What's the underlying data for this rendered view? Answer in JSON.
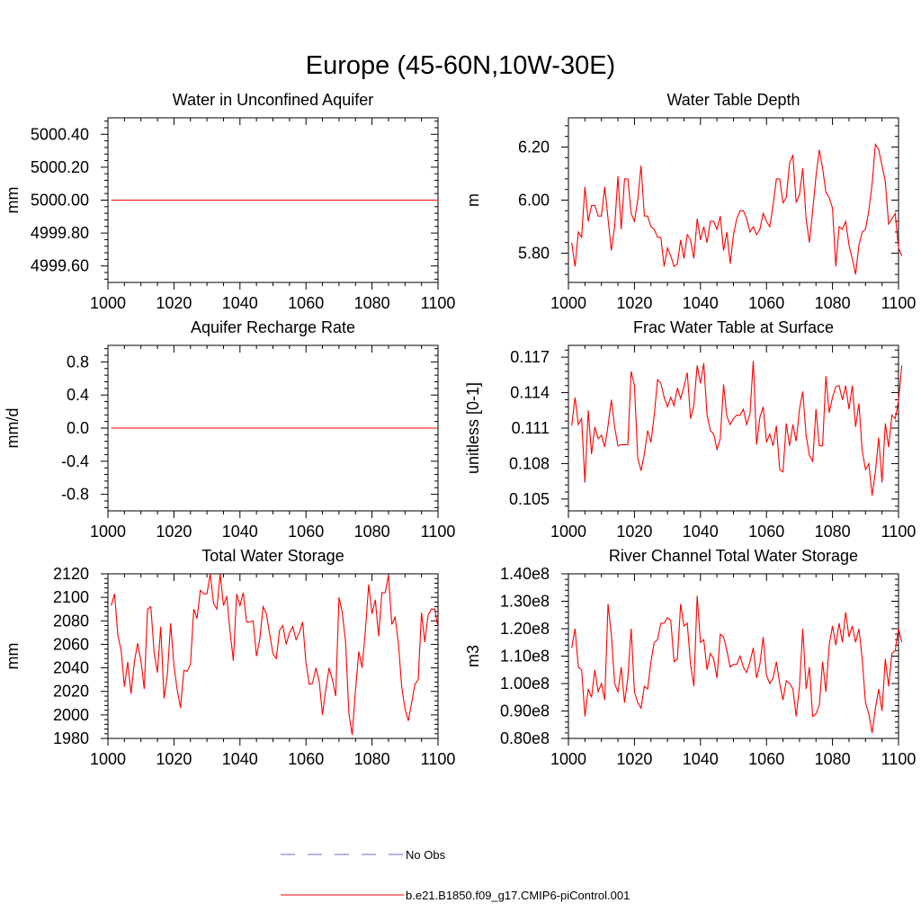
{
  "figure": {
    "title": "Europe (45-60N,10W-30E)"
  },
  "colors": {
    "series": "#ff0000",
    "obs": "#6d6dc8",
    "axis": "#000000"
  },
  "legend": [
    {
      "label": "No Obs",
      "style": "dashed",
      "color": "#6d6dc8"
    },
    {
      "label": "b.e21.B1850.f09_g17.CMIP6-piControl.001",
      "style": "solid",
      "color": "#ff0000"
    }
  ],
  "chart_data": [
    {
      "type": "line",
      "title": "Water in Unconfined Aquifer",
      "xlabel": "",
      "ylabel": "mm",
      "xlim": [
        1000,
        1100
      ],
      "ylim": [
        4999.5,
        5000.5
      ],
      "xticks": [
        1000,
        1020,
        1040,
        1060,
        1080,
        1100
      ],
      "xticklabels": [
        "1000",
        "1020",
        "1040",
        "1060",
        "1080",
        "1100"
      ],
      "yticks": [
        4999.6,
        4999.8,
        5000.0,
        5000.2,
        5000.4
      ],
      "yticklabels": [
        "4999.60",
        "4999.80",
        "5000.00",
        "5000.20",
        "5000.40"
      ],
      "x_start": 1001,
      "series": [
        {
          "name": "b.e21.B1850.f09_g17.CMIP6-piControl.001",
          "values": [
            5000.0,
            5000.0
          ]
        }
      ],
      "x": [
        1001,
        1100
      ]
    },
    {
      "type": "line",
      "title": "Water Table Depth",
      "xlabel": "",
      "ylabel": "m",
      "xlim": [
        1000,
        1100
      ],
      "ylim": [
        5.69,
        6.31
      ],
      "xticks": [
        1000,
        1020,
        1040,
        1060,
        1080,
        1100
      ],
      "xticklabels": [
        "1000",
        "1020",
        "1040",
        "1060",
        "1080",
        "1100"
      ],
      "yticks": [
        5.8,
        6.0,
        6.2
      ],
      "yticklabels": [
        "5.80",
        "6.00",
        "6.20"
      ],
      "x_start": 1001,
      "series": [
        {
          "name": "b.e21.B1850.f09_g17.CMIP6-piControl.001",
          "values": [
            5.84,
            5.75,
            5.88,
            5.86,
            6.05,
            5.92,
            5.98,
            5.98,
            5.94,
            5.94,
            6.05,
            5.93,
            5.81,
            5.9,
            6.09,
            5.89,
            6.08,
            6.08,
            5.95,
            5.92,
            6.0,
            6.13,
            5.94,
            5.94,
            5.9,
            5.89,
            5.86,
            5.86,
            5.75,
            5.82,
            5.79,
            5.75,
            5.76,
            5.85,
            5.78,
            5.87,
            5.85,
            5.78,
            5.93,
            5.85,
            5.9,
            5.84,
            5.92,
            5.92,
            5.89,
            5.94,
            5.81,
            5.88,
            5.76,
            5.87,
            5.93,
            5.96,
            5.96,
            5.93,
            5.88,
            5.9,
            5.87,
            5.89,
            5.95,
            5.92,
            5.9,
            5.98,
            6.08,
            6.08,
            5.99,
            6.01,
            6.14,
            6.17,
            5.99,
            6.02,
            6.12,
            5.93,
            5.84,
            5.96,
            6.09,
            6.19,
            6.12,
            6.03,
            6.01,
            5.97,
            5.75,
            5.9,
            5.89,
            5.92,
            5.83,
            5.78,
            5.72,
            5.83,
            5.88,
            5.89,
            5.96,
            6.06,
            6.21,
            6.19,
            6.13,
            6.07,
            5.91,
            5.93,
            5.95,
            5.82,
            5.79
          ]
        }
      ]
    },
    {
      "type": "line",
      "title": "Aquifer Recharge Rate",
      "xlabel": "",
      "ylabel": "mm/d",
      "xlim": [
        1000,
        1100
      ],
      "ylim": [
        -1.0,
        1.0
      ],
      "xticks": [
        1000,
        1020,
        1040,
        1060,
        1080,
        1100
      ],
      "xticklabels": [
        "1000",
        "1020",
        "1040",
        "1060",
        "1080",
        "1100"
      ],
      "yticks": [
        -0.8,
        -0.4,
        0.0,
        0.4,
        0.8
      ],
      "yticklabels": [
        "-0.8",
        "-0.4",
        "0.0",
        "0.4",
        "0.8"
      ],
      "x_start": 1001,
      "series": [
        {
          "name": "b.e21.B1850.f09_g17.CMIP6-piControl.001",
          "values": [
            0.0,
            0.0
          ]
        }
      ],
      "x": [
        1001,
        1100
      ]
    },
    {
      "type": "line",
      "title": "Frac Water Table at Surface",
      "xlabel": "",
      "ylabel": "unitless [0-1]",
      "xlim": [
        1000,
        1100
      ],
      "ylim": [
        0.104,
        0.118
      ],
      "xticks": [
        1000,
        1020,
        1040,
        1060,
        1080,
        1100
      ],
      "xticklabels": [
        "1000",
        "1020",
        "1040",
        "1060",
        "1080",
        "1100"
      ],
      "yticks": [
        0.105,
        0.108,
        0.111,
        0.114,
        0.117
      ],
      "yticklabels": [
        "0.105",
        "0.108",
        "0.111",
        "0.114",
        "0.117"
      ],
      "x_start": 1001,
      "series": [
        {
          "name": "b.e21.B1850.f09_g17.CMIP6-piControl.001",
          "values": [
            0.1112,
            0.1136,
            0.1113,
            0.1118,
            0.1064,
            0.1125,
            0.1088,
            0.1111,
            0.1101,
            0.1104,
            0.1094,
            0.1112,
            0.1134,
            0.1111,
            0.1095,
            0.1096,
            0.1096,
            0.1096,
            0.1158,
            0.1146,
            0.1085,
            0.1074,
            0.1088,
            0.1108,
            0.1098,
            0.1121,
            0.1151,
            0.1148,
            0.1136,
            0.1128,
            0.1136,
            0.1129,
            0.1144,
            0.1135,
            0.1145,
            0.1157,
            0.1118,
            0.1129,
            0.1163,
            0.1148,
            0.1165,
            0.1121,
            0.1108,
            0.1105,
            0.1092,
            0.1101,
            0.1147,
            0.112,
            0.1113,
            0.1118,
            0.1121,
            0.1121,
            0.1126,
            0.1113,
            0.1122,
            0.1167,
            0.1096,
            0.1119,
            0.1128,
            0.1098,
            0.1105,
            0.1095,
            0.1112,
            0.1075,
            0.1073,
            0.1114,
            0.1095,
            0.1113,
            0.1099,
            0.1126,
            0.1141,
            0.1104,
            0.1087,
            0.1082,
            0.1126,
            0.1095,
            0.1095,
            0.1154,
            0.1123,
            0.1136,
            0.1145,
            0.1146,
            0.1134,
            0.1146,
            0.1126,
            0.1146,
            0.1111,
            0.1131,
            0.1091,
            0.1075,
            0.108,
            0.1053,
            0.1073,
            0.1102,
            0.1064,
            0.1114,
            0.1094,
            0.1121,
            0.1118,
            0.1133,
            0.1163
          ]
        }
      ]
    },
    {
      "type": "line",
      "title": "Total Water Storage",
      "xlabel": "",
      "ylabel": "mm",
      "xlim": [
        1000,
        1100
      ],
      "ylim": [
        1980,
        2120
      ],
      "xticks": [
        1000,
        1020,
        1040,
        1060,
        1080,
        1100
      ],
      "xticklabels": [
        "1000",
        "1020",
        "1040",
        "1060",
        "1080",
        "1100"
      ],
      "yticks": [
        1980,
        2000,
        2020,
        2040,
        2060,
        2080,
        2100,
        2120
      ],
      "yticklabels": [
        "1980",
        "2000",
        "2020",
        "2040",
        "2060",
        "2080",
        "2100",
        "2120"
      ],
      "x_start": 1001,
      "series": [
        {
          "name": "b.e21.B1850.f09_g17.CMIP6-piControl.001",
          "values": [
            2093,
            2103,
            2068,
            2055,
            2024,
            2045,
            2018,
            2045,
            2061,
            2046,
            2022,
            2090,
            2092,
            2053,
            2036,
            2075,
            2014,
            2034,
            2078,
            2042,
            2021,
            2006,
            2038,
            2037,
            2043,
            2090,
            2082,
            2106,
            2103,
            2103,
            2120,
            2095,
            2090,
            2120,
            2093,
            2101,
            2071,
            2046,
            2103,
            2093,
            2104,
            2079,
            2079,
            2080,
            2050,
            2064,
            2092,
            2086,
            2069,
            2052,
            2048,
            2072,
            2076,
            2060,
            2070,
            2075,
            2064,
            2070,
            2079,
            2044,
            2026,
            2027,
            2040,
            2029,
            2000,
            2022,
            2040,
            2030,
            2016,
            2100,
            2087,
            2062,
            2001,
            1983,
            2021,
            2054,
            2040,
            2072,
            2111,
            2086,
            2098,
            2067,
            2104,
            2104,
            2119,
            2077,
            2083,
            2061,
            2024,
            2005,
            1995,
            2010,
            2026,
            2030,
            2087,
            2062,
            2085,
            2090,
            2090,
            2074
          ]
        }
      ]
    },
    {
      "type": "line",
      "title": "River Channel Total Water Storage",
      "xlabel": "",
      "ylabel": "m3",
      "xlim": [
        1000,
        1100
      ],
      "ylim": [
        0.8,
        1.4
      ],
      "xticks": [
        1000,
        1020,
        1040,
        1060,
        1080,
        1100
      ],
      "xticklabels": [
        "1000",
        "1020",
        "1040",
        "1060",
        "1080",
        "1100"
      ],
      "yticks": [
        0.8,
        0.9,
        1.0,
        1.1,
        1.2,
        1.3,
        1.4
      ],
      "yticklabels": [
        "0.80e8",
        "0.90e8",
        "1.00e8",
        "1.10e8",
        "1.20e8",
        "1.30e8",
        "1.40e8"
      ],
      "x_start": 1001,
      "series": [
        {
          "name": "b.e21.B1850.f09_g17.CMIP6-piControl.001",
          "values": [
            1.13,
            1.2,
            1.06,
            1.05,
            0.88,
            0.98,
            0.95,
            1.05,
            0.97,
            1.0,
            0.94,
            1.29,
            1.18,
            1.0,
            0.97,
            1.06,
            0.93,
            1.02,
            1.2,
            0.97,
            0.93,
            0.91,
            0.99,
            0.98,
            1.08,
            1.15,
            1.16,
            1.22,
            1.22,
            1.24,
            1.23,
            1.08,
            1.09,
            1.29,
            1.21,
            1.22,
            1.07,
            0.99,
            1.32,
            1.15,
            1.16,
            1.05,
            1.11,
            1.09,
            1.02,
            1.18,
            1.17,
            1.12,
            1.06,
            1.07,
            1.07,
            1.1,
            1.06,
            1.04,
            1.08,
            1.13,
            1.02,
            1.07,
            1.17,
            1.03,
            1.0,
            1.02,
            1.08,
            1.0,
            0.94,
            1.01,
            1.0,
            0.98,
            0.88,
            0.99,
            1.2,
            0.98,
            1.06,
            0.88,
            0.89,
            0.92,
            1.08,
            0.97,
            1.14,
            1.21,
            1.14,
            1.22,
            1.15,
            1.26,
            1.17,
            1.21,
            1.15,
            1.2,
            1.09,
            0.93,
            0.89,
            0.82,
            0.91,
            0.98,
            0.9,
            1.09,
            0.99,
            1.11,
            1.12,
            1.2,
            1.15
          ]
        }
      ]
    }
  ]
}
